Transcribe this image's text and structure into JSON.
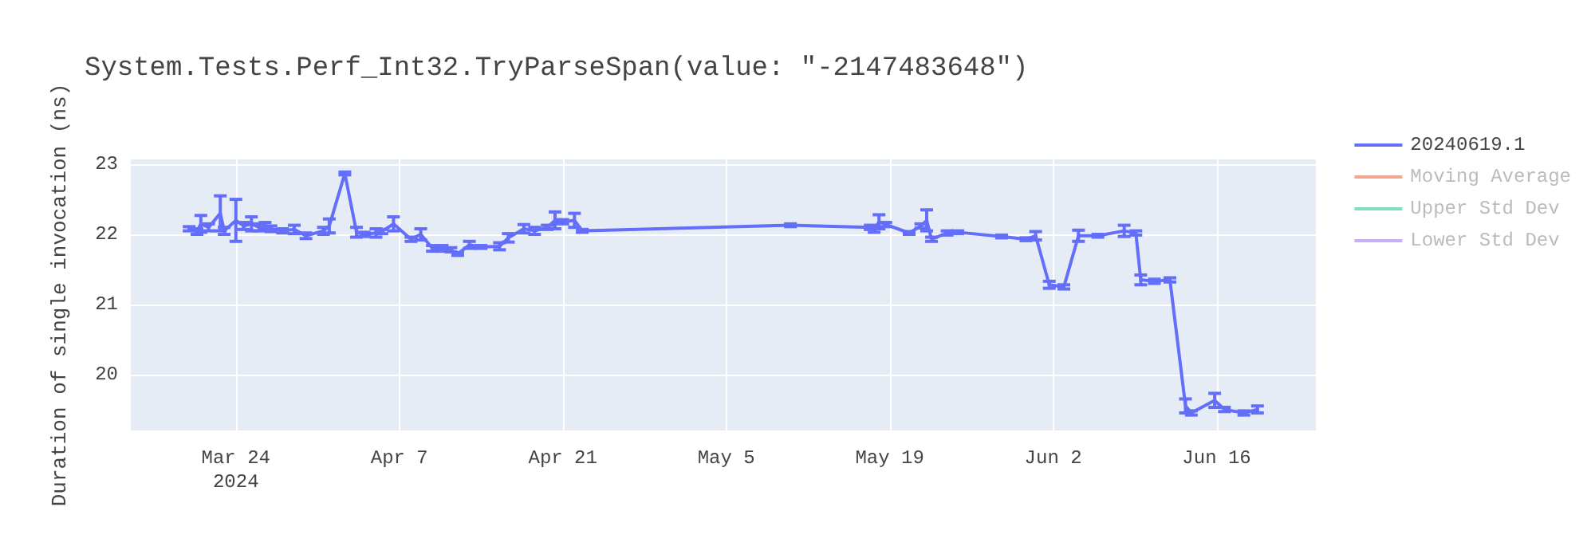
{
  "chart_data": {
    "type": "line",
    "title": "System.Tests.Perf_Int32.TryParseSpan(value: \"-2147483648\")",
    "ylabel": "Duration of single invocation (ns)",
    "x": [
      "2024-03-20",
      "2024-03-20T16:00",
      "2024-03-21",
      "2024-03-21T16:00",
      "2024-03-22T16:00",
      "2024-03-23",
      "2024-03-24",
      "2024-03-24T16:00",
      "2024-03-25T08:00",
      "2024-03-26",
      "2024-03-26T12:00",
      "2024-03-27",
      "2024-03-28",
      "2024-03-29",
      "2024-03-30",
      "2024-03-31T12:00",
      "2024-04-01",
      "2024-04-02T08:00",
      "2024-04-03T08:00",
      "2024-04-04",
      "2024-04-05",
      "2024-04-05T12:00",
      "2024-04-06T12:00",
      "2024-04-08",
      "2024-04-08T20:00",
      "2024-04-09T20:00",
      "2024-04-10T16:00",
      "2024-04-11T10:00",
      "2024-04-12",
      "2024-04-13",
      "2024-04-14",
      "2024-04-15T14:00",
      "2024-04-16T08:00",
      "2024-04-17T16:00",
      "2024-04-18T14:00",
      "2024-04-19T16:00",
      "2024-04-20T08:00",
      "2024-04-21",
      "2024-04-22",
      "2024-04-22T16:00",
      "2024-05-10T12:00",
      "2024-05-17T08:00",
      "2024-05-17T16:00",
      "2024-05-18T02:00",
      "2024-05-18T16:00",
      "2024-05-20T16:00",
      "2024-05-21T16:00",
      "2024-05-22T04:00",
      "2024-05-22T14:00",
      "2024-05-23T22:00",
      "2024-05-24T20:00",
      "2024-05-28T14:00",
      "2024-05-30T16:00",
      "2024-05-31T12:00",
      "2024-06-01T16:00",
      "2024-06-02T22:00",
      "2024-06-04T04:00",
      "2024-06-05T20:00",
      "2024-06-08T02:00",
      "2024-06-09T02:00",
      "2024-06-09T12:00",
      "2024-06-10T16:00",
      "2024-06-12",
      "2024-06-13T08:00",
      "2024-06-13T20:00",
      "2024-06-15T20:00",
      "2024-06-16T16:00",
      "2024-06-18T08:00",
      "2024-06-19T12:00"
    ],
    "series": [
      {
        "name": "20240619.1",
        "color": "#636efa",
        "values": [
          22.08,
          22.04,
          22.15,
          22.1,
          22.3,
          22.05,
          22.2,
          22.12,
          22.15,
          22.1,
          22.12,
          22.08,
          22.05,
          22.07,
          21.98,
          22.05,
          22.12,
          22.87,
          22.03,
          22.0,
          22.02,
          22.04,
          22.15,
          21.93,
          22.0,
          21.8,
          21.8,
          21.78,
          21.72,
          21.85,
          21.82,
          21.83,
          21.95,
          22.08,
          22.05,
          22.1,
          22.2,
          22.18,
          22.2,
          22.05,
          22.13,
          22.1,
          22.06,
          22.18,
          22.14,
          22.02,
          22.12,
          22.2,
          21.93,
          22.02,
          22.03,
          21.97,
          21.93,
          21.98,
          21.28,
          21.25,
          21.98,
          21.98,
          22.05,
          22.02,
          21.35,
          21.33,
          21.35,
          19.55,
          19.45,
          19.63,
          19.5,
          19.45,
          19.5
        ],
        "errors": [
          0.03,
          0.04,
          0.12,
          0.05,
          0.25,
          0.05,
          0.3,
          0.05,
          0.1,
          0.05,
          0.05,
          0.04,
          0.03,
          0.06,
          0.04,
          0.05,
          0.1,
          0.02,
          0.07,
          0.03,
          0.06,
          0.03,
          0.1,
          0.03,
          0.08,
          0.04,
          0.04,
          0.03,
          0.02,
          0.05,
          0.02,
          0.05,
          0.06,
          0.06,
          0.05,
          0.03,
          0.12,
          0.03,
          0.1,
          0.02,
          0.02,
          0.03,
          0.03,
          0.1,
          0.03,
          0.02,
          0.03,
          0.15,
          0.03,
          0.03,
          0.02,
          0.02,
          0.02,
          0.06,
          0.05,
          0.03,
          0.08,
          0.02,
          0.08,
          0.03,
          0.07,
          0.03,
          0.03,
          0.1,
          0.03,
          0.1,
          0.03,
          0.03,
          0.05
        ]
      },
      {
        "name": "Moving Average",
        "color": "#f4a58d",
        "values": [
          null,
          null,
          null,
          null,
          null,
          null,
          null,
          null,
          null,
          null,
          null,
          null,
          null,
          null,
          null,
          null,
          null,
          null,
          null,
          null,
          null,
          null,
          null,
          null,
          null,
          null,
          null,
          null,
          null,
          null,
          null,
          null,
          null,
          null,
          null,
          null,
          null,
          null,
          null,
          null,
          null,
          null,
          null,
          null,
          null,
          null,
          null,
          null,
          null,
          null,
          null,
          null,
          null,
          null,
          null,
          null,
          null,
          null,
          null,
          null,
          null,
          null,
          null,
          null,
          null,
          null,
          null,
          null,
          null
        ]
      },
      {
        "name": "Upper Std Dev",
        "color": "#7ee0bd",
        "values": [
          null,
          null,
          null,
          null,
          null,
          null,
          null,
          null,
          null,
          null,
          null,
          null,
          null,
          null,
          null,
          null,
          null,
          null,
          null,
          null,
          null,
          null,
          null,
          null,
          null,
          null,
          null,
          null,
          null,
          null,
          null,
          null,
          null,
          null,
          null,
          null,
          null,
          null,
          null,
          null,
          null,
          null,
          null,
          null,
          null,
          null,
          null,
          null,
          null,
          null,
          null,
          null,
          null,
          null,
          null,
          null,
          null,
          null,
          null,
          null,
          null,
          null,
          null,
          null,
          null,
          null,
          null,
          null,
          null
        ]
      },
      {
        "name": "Lower Std Dev",
        "color": "#c6b1f7",
        "values": [
          null,
          null,
          null,
          null,
          null,
          null,
          null,
          null,
          null,
          null,
          null,
          null,
          null,
          null,
          null,
          null,
          null,
          null,
          null,
          null,
          null,
          null,
          null,
          null,
          null,
          null,
          null,
          null,
          null,
          null,
          null,
          null,
          null,
          null,
          null,
          null,
          null,
          null,
          null,
          null,
          null,
          null,
          null,
          null,
          null,
          null,
          null,
          null,
          null,
          null,
          null,
          null,
          null,
          null,
          null,
          null,
          null,
          null,
          null,
          null,
          null,
          null,
          null,
          null,
          null,
          null,
          null,
          null,
          null
        ]
      }
    ],
    "xlim": [
      "2024-03-15",
      "2024-06-24T12:00"
    ],
    "xticks": [
      {
        "value": "2024-03-24",
        "label": "Mar 24\n2024"
      },
      {
        "value": "2024-04-07",
        "label": "Apr 7"
      },
      {
        "value": "2024-04-21",
        "label": "Apr 21"
      },
      {
        "value": "2024-05-05",
        "label": "May 5"
      },
      {
        "value": "2024-05-19",
        "label": "May 19"
      },
      {
        "value": "2024-06-02",
        "label": "Jun 2"
      },
      {
        "value": "2024-06-16",
        "label": "Jun 16"
      }
    ],
    "ylim": [
      19.2,
      23.07
    ],
    "yticks": [
      20,
      21,
      22,
      23
    ],
    "grid": true,
    "legend": "top right",
    "marker": "none",
    "line_style": "solid"
  }
}
